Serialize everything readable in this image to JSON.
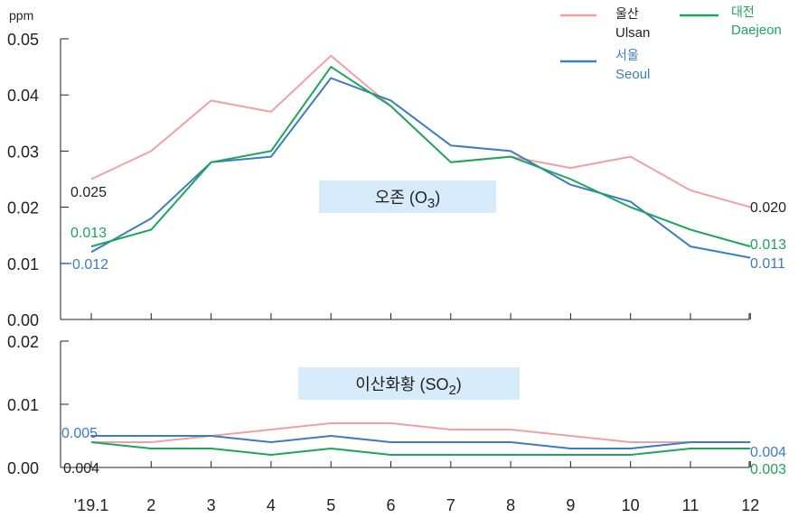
{
  "colors": {
    "ulsan": "#f0a0a5",
    "seoul": "#3c7cc0",
    "daejeon": "#1fa45e",
    "label_dark": "#231f20",
    "box": "#d6ecfa"
  },
  "unit_label": "ppm",
  "legend": [
    {
      "key": "ulsan",
      "ko": "울산",
      "en": "Ulsan"
    },
    {
      "key": "daejeon",
      "ko": "대전",
      "en": "Daejeon"
    },
    {
      "key": "seoul",
      "ko": "서울",
      "en": "Seoul"
    }
  ],
  "chart_data": [
    {
      "type": "line",
      "title": "오존 (O3)",
      "x_tick_labels": [
        "'19.1",
        "2",
        "3",
        "4",
        "5",
        "6",
        "7",
        "8",
        "9",
        "10",
        "11",
        "12"
      ],
      "y_ticks": [
        "0.00",
        "0.01",
        "0.02",
        "0.03",
        "0.04",
        "0.05"
      ],
      "ylim": [
        0,
        0.05
      ],
      "unit": "ppm",
      "series": [
        {
          "key": "ulsan",
          "name": "울산 Ulsan",
          "values": [
            0.025,
            0.03,
            0.039,
            0.037,
            0.047,
            0.038,
            0.028,
            0.029,
            0.027,
            0.029,
            0.023,
            0.02
          ]
        },
        {
          "key": "seoul",
          "name": "서울 Seoul",
          "values": [
            0.012,
            0.018,
            0.028,
            0.029,
            0.043,
            0.039,
            0.031,
            0.03,
            0.024,
            0.021,
            0.013,
            0.011
          ]
        },
        {
          "key": "daejeon",
          "name": "대전 Daejeon",
          "values": [
            0.013,
            0.016,
            0.028,
            0.03,
            0.045,
            0.038,
            0.028,
            0.029,
            0.025,
            0.02,
            0.016,
            0.013
          ]
        }
      ],
      "data_labels": [
        {
          "series": "ulsan",
          "index": 0,
          "text": "0.025"
        },
        {
          "series": "daejeon",
          "index": 0,
          "text": "0.013"
        },
        {
          "series": "seoul",
          "index": 0,
          "text": "0.012"
        },
        {
          "series": "ulsan",
          "index": 11,
          "text": "0.020"
        },
        {
          "series": "daejeon",
          "index": 11,
          "text": "0.013"
        },
        {
          "series": "seoul",
          "index": 11,
          "text": "0.011"
        }
      ]
    },
    {
      "type": "line",
      "title": "이산화황 (SO2)",
      "x_tick_labels": [
        "'19.1",
        "2",
        "3",
        "4",
        "5",
        "6",
        "7",
        "8",
        "9",
        "10",
        "11",
        "12"
      ],
      "y_ticks": [
        "0.00",
        "0.01",
        "0.02"
      ],
      "ylim": [
        0,
        0.02
      ],
      "unit": "ppm",
      "series": [
        {
          "key": "ulsan",
          "name": "울산 Ulsan",
          "values": [
            0.004,
            0.004,
            0.005,
            0.006,
            0.007,
            0.007,
            0.006,
            0.006,
            0.005,
            0.004,
            0.004,
            0.004
          ]
        },
        {
          "key": "seoul",
          "name": "서울 Seoul",
          "values": [
            0.005,
            0.005,
            0.005,
            0.004,
            0.005,
            0.004,
            0.004,
            0.004,
            0.003,
            0.003,
            0.004,
            0.004
          ]
        },
        {
          "key": "daejeon",
          "name": "대전 Daejeon",
          "values": [
            0.004,
            0.003,
            0.003,
            0.002,
            0.003,
            0.002,
            0.002,
            0.002,
            0.002,
            0.002,
            0.003,
            0.003
          ]
        }
      ],
      "data_labels": [
        {
          "series": "seoul",
          "index": 0,
          "text": "0.005"
        },
        {
          "series": "ulsan",
          "index": 0,
          "text": "0.004"
        },
        {
          "series": "seoul",
          "index": 11,
          "text": "0.004"
        },
        {
          "series": "daejeon",
          "index": 11,
          "text": "0.003"
        }
      ]
    }
  ]
}
